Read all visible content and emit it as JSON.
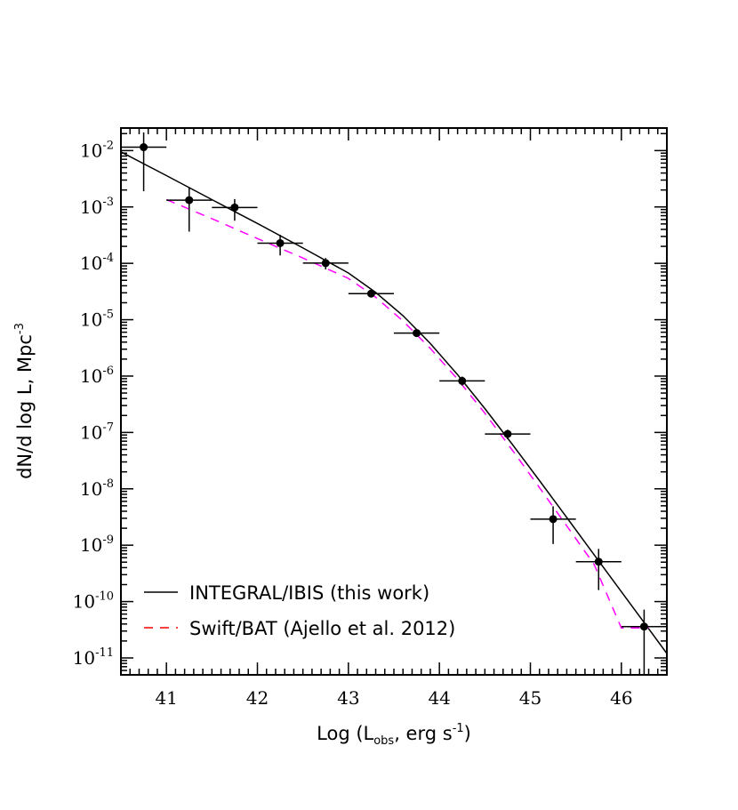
{
  "chart_data": {
    "type": "scatter",
    "xlabel": {
      "pre": "Log (L",
      "sub": "obs",
      "post": ", erg s",
      "sup": "-1",
      "end": ")"
    },
    "ylabel": {
      "pre": "dN/d log L,  Mpc",
      "sup": "-3"
    },
    "xlim": [
      40.5,
      46.5
    ],
    "ylim_log10": [
      -11.3,
      -1.6
    ],
    "log_y": true,
    "x_ticks": [
      "41",
      "42",
      "43",
      "44",
      "45",
      "46"
    ],
    "y_ticks": [
      {
        "base": "10",
        "exp": "-2"
      },
      {
        "base": "10",
        "exp": "-3"
      },
      {
        "base": "10",
        "exp": "-4"
      },
      {
        "base": "10",
        "exp": "-5"
      },
      {
        "base": "10",
        "exp": "-6"
      },
      {
        "base": "10",
        "exp": "-7"
      },
      {
        "base": "10",
        "exp": "-8"
      },
      {
        "base": "10",
        "exp": "-9"
      },
      {
        "base": "10",
        "exp": "-10"
      },
      {
        "base": "10",
        "exp": "-11"
      }
    ],
    "points": [
      {
        "x": 40.75,
        "y": 0.0115,
        "xlo": 40.5,
        "xhi": 41.0,
        "ylo": 0.0019,
        "yhi": 0.021
      },
      {
        "x": 41.25,
        "y": 0.00132,
        "xlo": 41.0,
        "xhi": 41.5,
        "ylo": 0.000365,
        "yhi": 0.00225
      },
      {
        "x": 41.75,
        "y": 0.00098,
        "xlo": 41.5,
        "xhi": 42.0,
        "ylo": 0.00057,
        "yhi": 0.00138
      },
      {
        "x": 42.25,
        "y": 0.000228,
        "xlo": 42.0,
        "xhi": 42.5,
        "ylo": 0.000138,
        "yhi": 0.00032
      },
      {
        "x": 42.75,
        "y": 0.000101,
        "xlo": 42.5,
        "xhi": 43.0,
        "ylo": 7.8e-05,
        "yhi": 0.000124
      },
      {
        "x": 43.25,
        "y": 2.9e-05,
        "xlo": 43.0,
        "xhi": 43.5,
        "ylo": 2.55e-05,
        "yhi": 3.25e-05
      },
      {
        "x": 43.75,
        "y": 5.8e-06,
        "xlo": 43.5,
        "xhi": 44.0,
        "ylo": 5.2e-06,
        "yhi": 6.5e-06
      },
      {
        "x": 44.25,
        "y": 8.2e-07,
        "xlo": 44.0,
        "xhi": 44.5,
        "ylo": 6.8e-07,
        "yhi": 9.8e-07
      },
      {
        "x": 44.75,
        "y": 9.4e-08,
        "xlo": 44.5,
        "xhi": 45.0,
        "ylo": 7.6e-08,
        "yhi": 1.12e-07
      },
      {
        "x": 45.25,
        "y": 2.9e-09,
        "xlo": 45.0,
        "xhi": 45.5,
        "ylo": 1.05e-09,
        "yhi": 4.9e-09
      },
      {
        "x": 45.75,
        "y": 5.1e-10,
        "xlo": 45.5,
        "xhi": 46.0,
        "ylo": 1.6e-10,
        "yhi": 8.6e-10
      },
      {
        "x": 46.25,
        "y": 3.6e-11,
        "xlo": 46.0,
        "xhi": 46.5,
        "ylo": 5e-12,
        "yhi": 7.2e-11
      }
    ],
    "series": [
      {
        "name": "INTEGRAL/IBIS (this work)",
        "color": "#000000",
        "dash": "solid",
        "x": [
          40.5,
          41.0,
          41.5,
          42.0,
          42.5,
          43.0,
          43.3,
          43.6,
          43.9,
          44.2,
          44.5,
          44.8,
          45.1,
          45.4,
          45.7,
          46.0,
          46.3,
          46.5
        ],
        "y": [
          0.0095,
          0.0036,
          0.00135,
          0.00051,
          0.000187,
          6.75e-05,
          3.05e-05,
          1.18e-05,
          3.8e-06,
          1.06e-06,
          2.65e-07,
          6.2e-08,
          1.4e-08,
          3.1e-09,
          6.8e-10,
          1.5e-10,
          3.3e-11,
          1.2e-11
        ]
      },
      {
        "name": "Swift/BAT (Ajello et al. 2012)",
        "color": "#ff00ff",
        "legend_color": "#ff0000",
        "dash": "dashed",
        "x": [
          41.0,
          41.5,
          42.0,
          42.5,
          43.0,
          43.3,
          43.6,
          43.9,
          44.2,
          44.5,
          44.8,
          45.1,
          45.4,
          45.7,
          46.0,
          46.3
        ],
        "y": [
          0.00135,
          0.00062,
          0.000275,
          0.000124,
          5.4e-05,
          2.5e-05,
          9.5e-06,
          3.1e-06,
          8.8e-07,
          2.2e-07,
          4.9e-08,
          1.05e-08,
          2.2e-09,
          4.6e-10,
          3.4e-11,
          3.4e-11
        ]
      }
    ],
    "legend_position": "bottom-left"
  }
}
